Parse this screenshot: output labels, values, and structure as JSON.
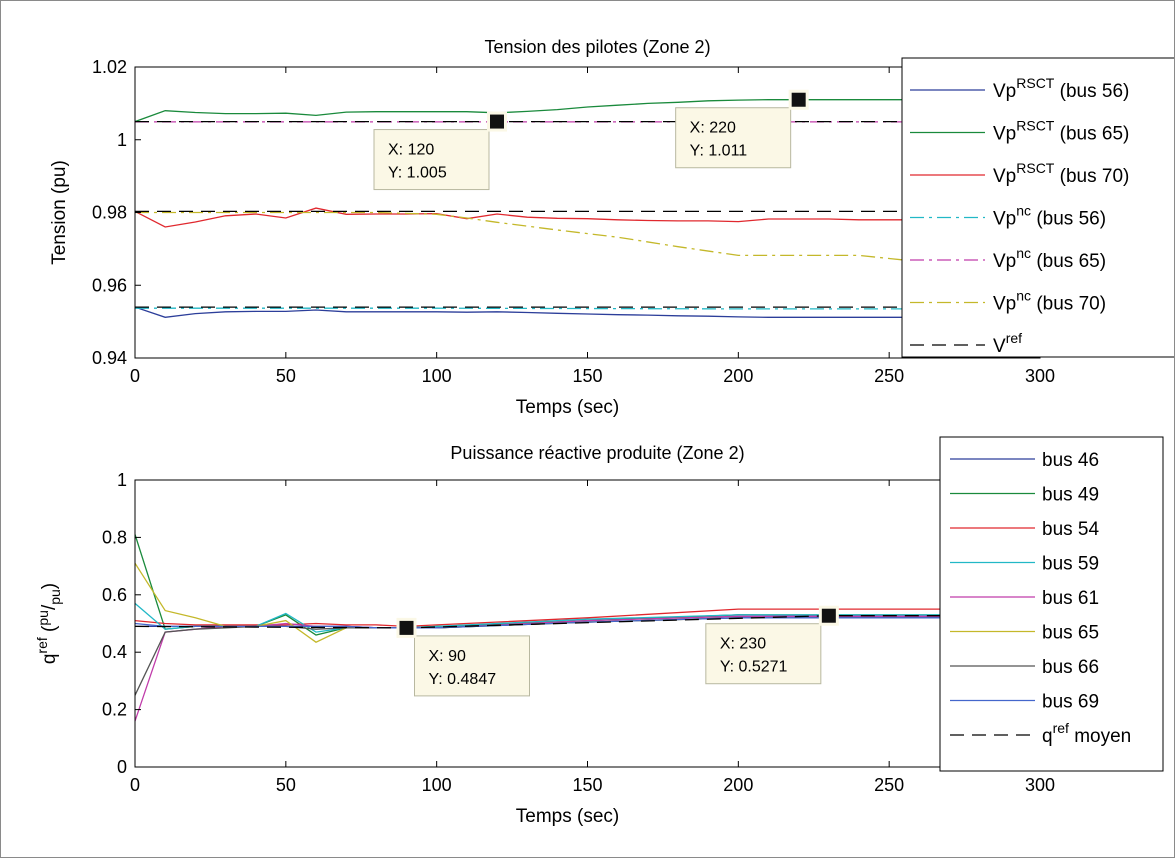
{
  "chart_data": [
    {
      "type": "line",
      "title": "Tension des pilotes (Zone 2)",
      "xlabel": "Temps (sec)",
      "ylabel": "Tension (pu)",
      "xlim": [
        0,
        300
      ],
      "ylim": [
        0.94,
        1.02
      ],
      "xticks": [
        "0",
        "50",
        "100",
        "150",
        "200",
        "250",
        "300"
      ],
      "yticks": [
        "0.94",
        "0.96",
        "0.98",
        "1",
        "1.02"
      ],
      "xtick_values": [
        0,
        50,
        100,
        150,
        200,
        250,
        300
      ],
      "ytick_values": [
        0.94,
        0.96,
        0.98,
        1.0,
        1.02
      ],
      "grid": false,
      "legend_position": "right",
      "series": [
        {
          "base": "Vp",
          "sup": "RSCT",
          "suffix": " (bus 56)",
          "color": "#2c3e9a",
          "dash": "solid",
          "x": [
            0,
            10,
            20,
            30,
            40,
            50,
            60,
            70,
            80,
            90,
            100,
            110,
            120,
            130,
            140,
            150,
            160,
            170,
            180,
            190,
            200,
            210,
            220,
            230,
            240,
            250,
            260,
            270,
            280,
            290,
            300
          ],
          "y": [
            0.954,
            0.9512,
            0.9522,
            0.9527,
            0.9528,
            0.9528,
            0.9532,
            0.9527,
            0.9527,
            0.9527,
            0.9527,
            0.9526,
            0.9527,
            0.9525,
            0.9523,
            0.9521,
            0.9519,
            0.9518,
            0.9516,
            0.9515,
            0.9513,
            0.9512,
            0.9512,
            0.9512,
            0.9512,
            0.9512,
            0.9512,
            0.9512,
            0.9512,
            0.9512,
            0.9512
          ]
        },
        {
          "base": "Vp",
          "sup": "RSCT",
          "suffix": " (bus 65)",
          "color": "#1a8a3c",
          "dash": "solid",
          "x": [
            0,
            10,
            20,
            30,
            40,
            50,
            60,
            70,
            80,
            90,
            100,
            110,
            120,
            130,
            140,
            150,
            160,
            170,
            180,
            190,
            200,
            210,
            220,
            230,
            240,
            250,
            260,
            270,
            280,
            290,
            300
          ],
          "y": [
            1.005,
            1.008,
            1.0075,
            1.0072,
            1.0072,
            1.0073,
            1.0067,
            1.0076,
            1.0077,
            1.0077,
            1.0077,
            1.0077,
            1.0074,
            1.0078,
            1.0083,
            1.009,
            1.0095,
            1.01,
            1.0103,
            1.0107,
            1.0109,
            1.011,
            1.011,
            1.011,
            1.011,
            1.011,
            1.011,
            1.011,
            1.011,
            1.011,
            1.011
          ]
        },
        {
          "base": "Vp",
          "sup": "RSCT",
          "suffix": " (bus 70)",
          "color": "#e0282e",
          "dash": "solid",
          "x": [
            0,
            10,
            20,
            30,
            40,
            50,
            60,
            70,
            80,
            90,
            100,
            110,
            120,
            130,
            140,
            150,
            160,
            170,
            180,
            190,
            200,
            210,
            220,
            230,
            240,
            250,
            260,
            270,
            280,
            290,
            300
          ],
          "y": [
            0.9803,
            0.976,
            0.9774,
            0.9791,
            0.9796,
            0.9785,
            0.9812,
            0.9795,
            0.9796,
            0.9796,
            0.9797,
            0.9783,
            0.9796,
            0.9787,
            0.9784,
            0.9783,
            0.978,
            0.9778,
            0.9777,
            0.9777,
            0.9775,
            0.9782,
            0.9782,
            0.9782,
            0.978,
            0.978,
            0.978,
            0.978,
            0.978,
            0.978,
            0.978
          ]
        },
        {
          "base": "Vp",
          "sup": "nc",
          "suffix": " (bus 56)",
          "color": "#22b8c6",
          "dash": "dashdot",
          "x": [
            0,
            100,
            200,
            300
          ],
          "y": [
            0.9537,
            0.9537,
            0.9535,
            0.9535
          ]
        },
        {
          "base": "Vp",
          "sup": "nc",
          "suffix": " (bus 65)",
          "color": "#c03caa",
          "dash": "dashdot",
          "x": [
            0,
            100,
            200,
            300
          ],
          "y": [
            1.0049,
            1.0049,
            1.0049,
            1.0049
          ]
        },
        {
          "base": "Vp",
          "sup": "nc",
          "suffix": " (bus 70)",
          "color": "#c4b82a",
          "dash": "dashdot",
          "x": [
            0,
            20,
            40,
            60,
            80,
            100,
            110,
            120,
            140,
            160,
            180,
            200,
            220,
            240,
            260,
            280,
            300
          ],
          "y": [
            0.98,
            0.98,
            0.98,
            0.98,
            0.98,
            0.9795,
            0.9785,
            0.9773,
            0.9752,
            0.9732,
            0.9706,
            0.9682,
            0.9682,
            0.9682,
            0.9665,
            0.9665,
            0.9665
          ]
        },
        {
          "base": "V",
          "sup": "ref",
          "suffix": "",
          "color": "#000000",
          "dash": "dashed",
          "x": [
            0,
            300
          ],
          "y": [
            1.005,
            1.005
          ]
        },
        {
          "legend": false,
          "color": "#000000",
          "dash": "dashed",
          "x": [
            0,
            300
          ],
          "y": [
            0.9803,
            0.9803
          ]
        },
        {
          "legend": false,
          "color": "#000000",
          "dash": "dashed",
          "x": [
            0,
            300
          ],
          "y": [
            0.954,
            0.954
          ]
        }
      ],
      "datatips": [
        {
          "x": 120,
          "y": 1.005,
          "lines": [
            "X: 120",
            "Y: 1.005"
          ],
          "box_side": "left-below"
        },
        {
          "x": 220,
          "y": 1.011,
          "lines": [
            "X: 220",
            "Y: 1.011"
          ],
          "box_side": "left-below"
        }
      ]
    },
    {
      "type": "line",
      "title": "Puissance réactive produite (Zone 2)",
      "xlabel": "Temps (sec)",
      "ylabel_base": "q",
      "ylabel_sup": "ref",
      "ylabel_paren_num": "pu",
      "ylabel_paren_den": "pu",
      "xlim": [
        0,
        300
      ],
      "ylim": [
        0,
        1
      ],
      "xticks": [
        "0",
        "50",
        "100",
        "150",
        "200",
        "250",
        "300"
      ],
      "yticks": [
        "0",
        "0.2",
        "0.4",
        "0.6",
        "0.8",
        "1"
      ],
      "xtick_values": [
        0,
        50,
        100,
        150,
        200,
        250,
        300
      ],
      "ytick_values": [
        0,
        0.2,
        0.4,
        0.6,
        0.8,
        1
      ],
      "grid": false,
      "legend_position": "right",
      "series": [
        {
          "name": "bus 46",
          "color": "#2c3e9a",
          "dash": "solid",
          "x": [
            0,
            10,
            20,
            30,
            40,
            50,
            60,
            70,
            80,
            90,
            100,
            150,
            200,
            250,
            300
          ],
          "y": [
            0.49,
            0.49,
            0.49,
            0.49,
            0.49,
            0.49,
            0.49,
            0.49,
            0.485,
            0.485,
            0.485,
            0.51,
            0.53,
            0.525,
            0.525
          ]
        },
        {
          "name": "bus 49",
          "color": "#1a8a3c",
          "dash": "solid",
          "x": [
            0,
            10,
            20,
            30,
            40,
            50,
            60,
            70,
            80,
            90,
            100,
            150,
            200,
            250,
            300
          ],
          "y": [
            0.81,
            0.48,
            0.49,
            0.49,
            0.49,
            0.53,
            0.46,
            0.485,
            0.485,
            0.485,
            0.49,
            0.51,
            0.53,
            0.53,
            0.53
          ]
        },
        {
          "name": "bus 54",
          "color": "#e0282e",
          "dash": "solid",
          "x": [
            0,
            10,
            20,
            30,
            40,
            50,
            60,
            70,
            80,
            90,
            100,
            150,
            200,
            250,
            300
          ],
          "y": [
            0.51,
            0.5,
            0.495,
            0.495,
            0.495,
            0.495,
            0.5,
            0.495,
            0.495,
            0.49,
            0.495,
            0.52,
            0.55,
            0.55,
            0.55
          ]
        },
        {
          "name": "bus 59",
          "color": "#22b8c6",
          "dash": "solid",
          "x": [
            0,
            10,
            20,
            30,
            40,
            50,
            60,
            70,
            80,
            90,
            100,
            150,
            200,
            250,
            300
          ],
          "y": [
            0.57,
            0.48,
            0.49,
            0.49,
            0.49,
            0.535,
            0.47,
            0.485,
            0.485,
            0.485,
            0.49,
            0.515,
            0.53,
            0.53,
            0.53
          ]
        },
        {
          "name": "bus 61",
          "color": "#c03caa",
          "dash": "solid",
          "x": [
            0,
            10,
            20,
            30,
            40,
            50,
            60,
            70,
            80,
            90,
            100,
            150,
            200,
            250,
            300
          ],
          "y": [
            0.16,
            0.47,
            0.48,
            0.49,
            0.49,
            0.5,
            0.49,
            0.49,
            0.485,
            0.485,
            0.485,
            0.51,
            0.525,
            0.525,
            0.525
          ]
        },
        {
          "name": "bus 65",
          "color": "#c4b82a",
          "dash": "solid",
          "x": [
            0,
            10,
            20,
            30,
            40,
            50,
            60,
            70,
            80,
            90,
            100,
            150,
            200,
            250,
            300
          ],
          "y": [
            0.71,
            0.545,
            0.52,
            0.49,
            0.49,
            0.51,
            0.435,
            0.485,
            0.485,
            0.485,
            0.485,
            0.505,
            0.52,
            0.52,
            0.52
          ]
        },
        {
          "name": "bus 66",
          "color": "#555555",
          "dash": "solid",
          "x": [
            0,
            10,
            20,
            30,
            40,
            50,
            60,
            70,
            80,
            90,
            100,
            150,
            200,
            250,
            300
          ],
          "y": [
            0.25,
            0.47,
            0.48,
            0.485,
            0.49,
            0.49,
            0.48,
            0.485,
            0.485,
            0.485,
            0.485,
            0.505,
            0.52,
            0.52,
            0.52
          ]
        },
        {
          "name": "bus 69",
          "color": "#4466cc",
          "dash": "solid",
          "x": [
            0,
            10,
            20,
            30,
            40,
            50,
            60,
            70,
            80,
            90,
            100,
            150,
            200,
            250,
            300
          ],
          "y": [
            0.5,
            0.49,
            0.49,
            0.49,
            0.49,
            0.49,
            0.49,
            0.49,
            0.485,
            0.485,
            0.485,
            0.505,
            0.52,
            0.52,
            0.52
          ]
        },
        {
          "base": "q",
          "sup": "ref",
          "suffix": " moyen",
          "color": "#000000",
          "dash": "dashed",
          "x": [
            0,
            90,
            230,
            300
          ],
          "y": [
            0.49,
            0.4847,
            0.5271,
            0.5271
          ]
        }
      ],
      "datatips": [
        {
          "x": 90,
          "y": 0.4847,
          "lines": [
            "X: 90",
            "Y: 0.4847"
          ],
          "box_side": "right-below"
        },
        {
          "x": 230,
          "y": 0.5271,
          "lines": [
            "X: 230",
            "Y: 0.5271"
          ],
          "box_side": "left-below"
        }
      ]
    }
  ]
}
